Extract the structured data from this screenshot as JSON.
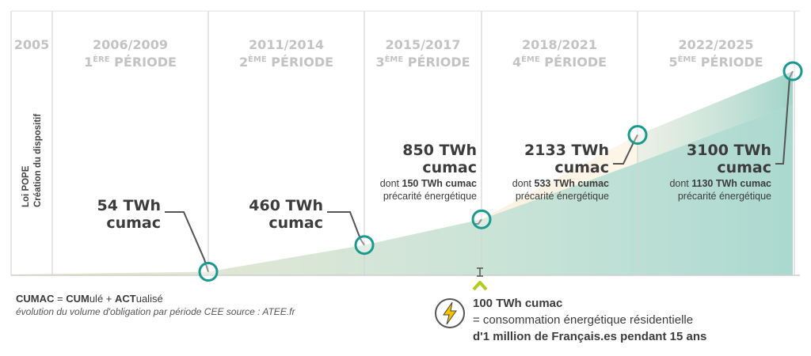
{
  "chart_data": {
    "type": "area",
    "title": "",
    "xlabel": "",
    "ylabel": "",
    "periods": [
      {
        "years": "2005",
        "name": "",
        "sup": ""
      },
      {
        "years": "2006/2009",
        "name": "PÉRIODE",
        "num": "1",
        "sup": "ÈRE"
      },
      {
        "years": "2011/2014",
        "name": "PÉRIODE",
        "num": "2",
        "sup": "ÈME"
      },
      {
        "years": "2015/2017",
        "name": "PÉRIODE",
        "num": "3",
        "sup": "ÈME"
      },
      {
        "years": "2018/2021",
        "name": "PÉRIODE",
        "num": "4",
        "sup": "ÈME"
      },
      {
        "years": "2022/2025",
        "name": "PÉRIODE",
        "num": "5",
        "sup": "ÈME"
      }
    ],
    "x": [
      "2006/2009",
      "2011/2014",
      "2015/2017",
      "2018/2021",
      "2022/2025"
    ],
    "series": [
      {
        "values": [
          54,
          460,
          850,
          2133,
          3100
        ]
      },
      {
        "values": [
          null,
          null,
          150,
          533,
          1130
        ]
      }
    ],
    "ylim": [
      0,
      3100
    ],
    "annotations": [
      {
        "line1": "54 TWh",
        "line2": "cumac"
      },
      {
        "line1": "460 TWh",
        "line2": "cumac"
      },
      {
        "line1": "850 TWh",
        "line2": "cumac",
        "sub1_pre": "dont ",
        "sub1_bold": "150 TWh cumac",
        "sub2": "précarité énergétique"
      },
      {
        "line1": "2133 TWh",
        "line2": "cumac",
        "sub1_pre": "dont ",
        "sub1_bold": "533 TWh cumac",
        "sub2": "précarité énergétique"
      },
      {
        "line1": "3100 TWh",
        "line2": "cumac",
        "sub1_pre": "dont ",
        "sub1_bold": "1130 TWh cumac",
        "sub2": "précarité énergétique"
      }
    ],
    "vertical_labels": [
      "Loi POPE",
      "Création du dispositif"
    ],
    "colors": {
      "accent_teal": "#1a9a8e",
      "area_teal": "#9fd3c9",
      "area_beige": "#f3dbb0",
      "arrow": "#b5cc1e",
      "grid": "#cfcfcf",
      "text": "#3c3c3c"
    }
  },
  "legend": {
    "cumac_a": "CUMAC",
    "cumac_eq": " = ",
    "cum_b": "CUM",
    "cum_rest": "ulé + ",
    "act_b": "ACT",
    "act_rest": "ualisé",
    "note": "évolution du volume d'obligation par période CEE source : ATEE.fr"
  },
  "equivalence": {
    "line1": "100 TWh cumac",
    "line2": "=  consommation énergétique résidentielle",
    "line3": "d'1 million de Français.es pendant 15 ans",
    "icon": "lightning-bolt-icon"
  }
}
